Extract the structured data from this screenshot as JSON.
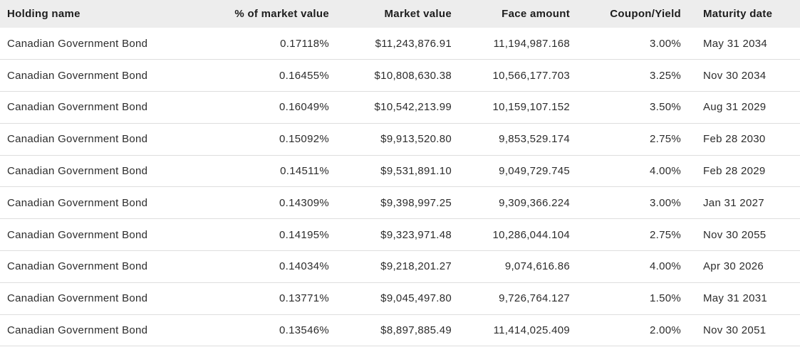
{
  "table": {
    "columns": [
      {
        "key": "holding_name",
        "label": "Holding name"
      },
      {
        "key": "pct_market_value",
        "label": "% of market value"
      },
      {
        "key": "market_value",
        "label": "Market value"
      },
      {
        "key": "face_amount",
        "label": "Face amount"
      },
      {
        "key": "coupon_yield",
        "label": "Coupon/Yield"
      },
      {
        "key": "maturity_date",
        "label": "Maturity date"
      }
    ],
    "rows": [
      {
        "holding_name": "Canadian Government Bond",
        "pct_market_value": "0.17118%",
        "market_value": "$11,243,876.91",
        "face_amount": "11,194,987.168",
        "coupon_yield": "3.00%",
        "maturity_date": "May 31 2034"
      },
      {
        "holding_name": "Canadian Government Bond",
        "pct_market_value": "0.16455%",
        "market_value": "$10,808,630.38",
        "face_amount": "10,566,177.703",
        "coupon_yield": "3.25%",
        "maturity_date": "Nov 30 2034"
      },
      {
        "holding_name": "Canadian Government Bond",
        "pct_market_value": "0.16049%",
        "market_value": "$10,542,213.99",
        "face_amount": "10,159,107.152",
        "coupon_yield": "3.50%",
        "maturity_date": "Aug 31 2029"
      },
      {
        "holding_name": "Canadian Government Bond",
        "pct_market_value": "0.15092%",
        "market_value": "$9,913,520.80",
        "face_amount": "9,853,529.174",
        "coupon_yield": "2.75%",
        "maturity_date": "Feb 28 2030"
      },
      {
        "holding_name": "Canadian Government Bond",
        "pct_market_value": "0.14511%",
        "market_value": "$9,531,891.10",
        "face_amount": "9,049,729.745",
        "coupon_yield": "4.00%",
        "maturity_date": "Feb 28 2029"
      },
      {
        "holding_name": "Canadian Government Bond",
        "pct_market_value": "0.14309%",
        "market_value": "$9,398,997.25",
        "face_amount": "9,309,366.224",
        "coupon_yield": "3.00%",
        "maturity_date": "Jan 31 2027"
      },
      {
        "holding_name": "Canadian Government Bond",
        "pct_market_value": "0.14195%",
        "market_value": "$9,323,971.48",
        "face_amount": "10,286,044.104",
        "coupon_yield": "2.75%",
        "maturity_date": "Nov 30 2055"
      },
      {
        "holding_name": "Canadian Government Bond",
        "pct_market_value": "0.14034%",
        "market_value": "$9,218,201.27",
        "face_amount": "9,074,616.86",
        "coupon_yield": "4.00%",
        "maturity_date": "Apr 30 2026"
      },
      {
        "holding_name": "Canadian Government Bond",
        "pct_market_value": "0.13771%",
        "market_value": "$9,045,497.80",
        "face_amount": "9,726,764.127",
        "coupon_yield": "1.50%",
        "maturity_date": "May 31 2031"
      },
      {
        "holding_name": "Canadian Government Bond",
        "pct_market_value": "0.13546%",
        "market_value": "$8,897,885.49",
        "face_amount": "11,414,025.409",
        "coupon_yield": "2.00%",
        "maturity_date": "Nov 30 2051"
      }
    ]
  },
  "colors": {
    "header_background": "#ededed",
    "header_text": "#1d1d1d",
    "body_text": "#2c2c2c",
    "row_divider": "#dedede",
    "page_background": "#ffffff"
  }
}
